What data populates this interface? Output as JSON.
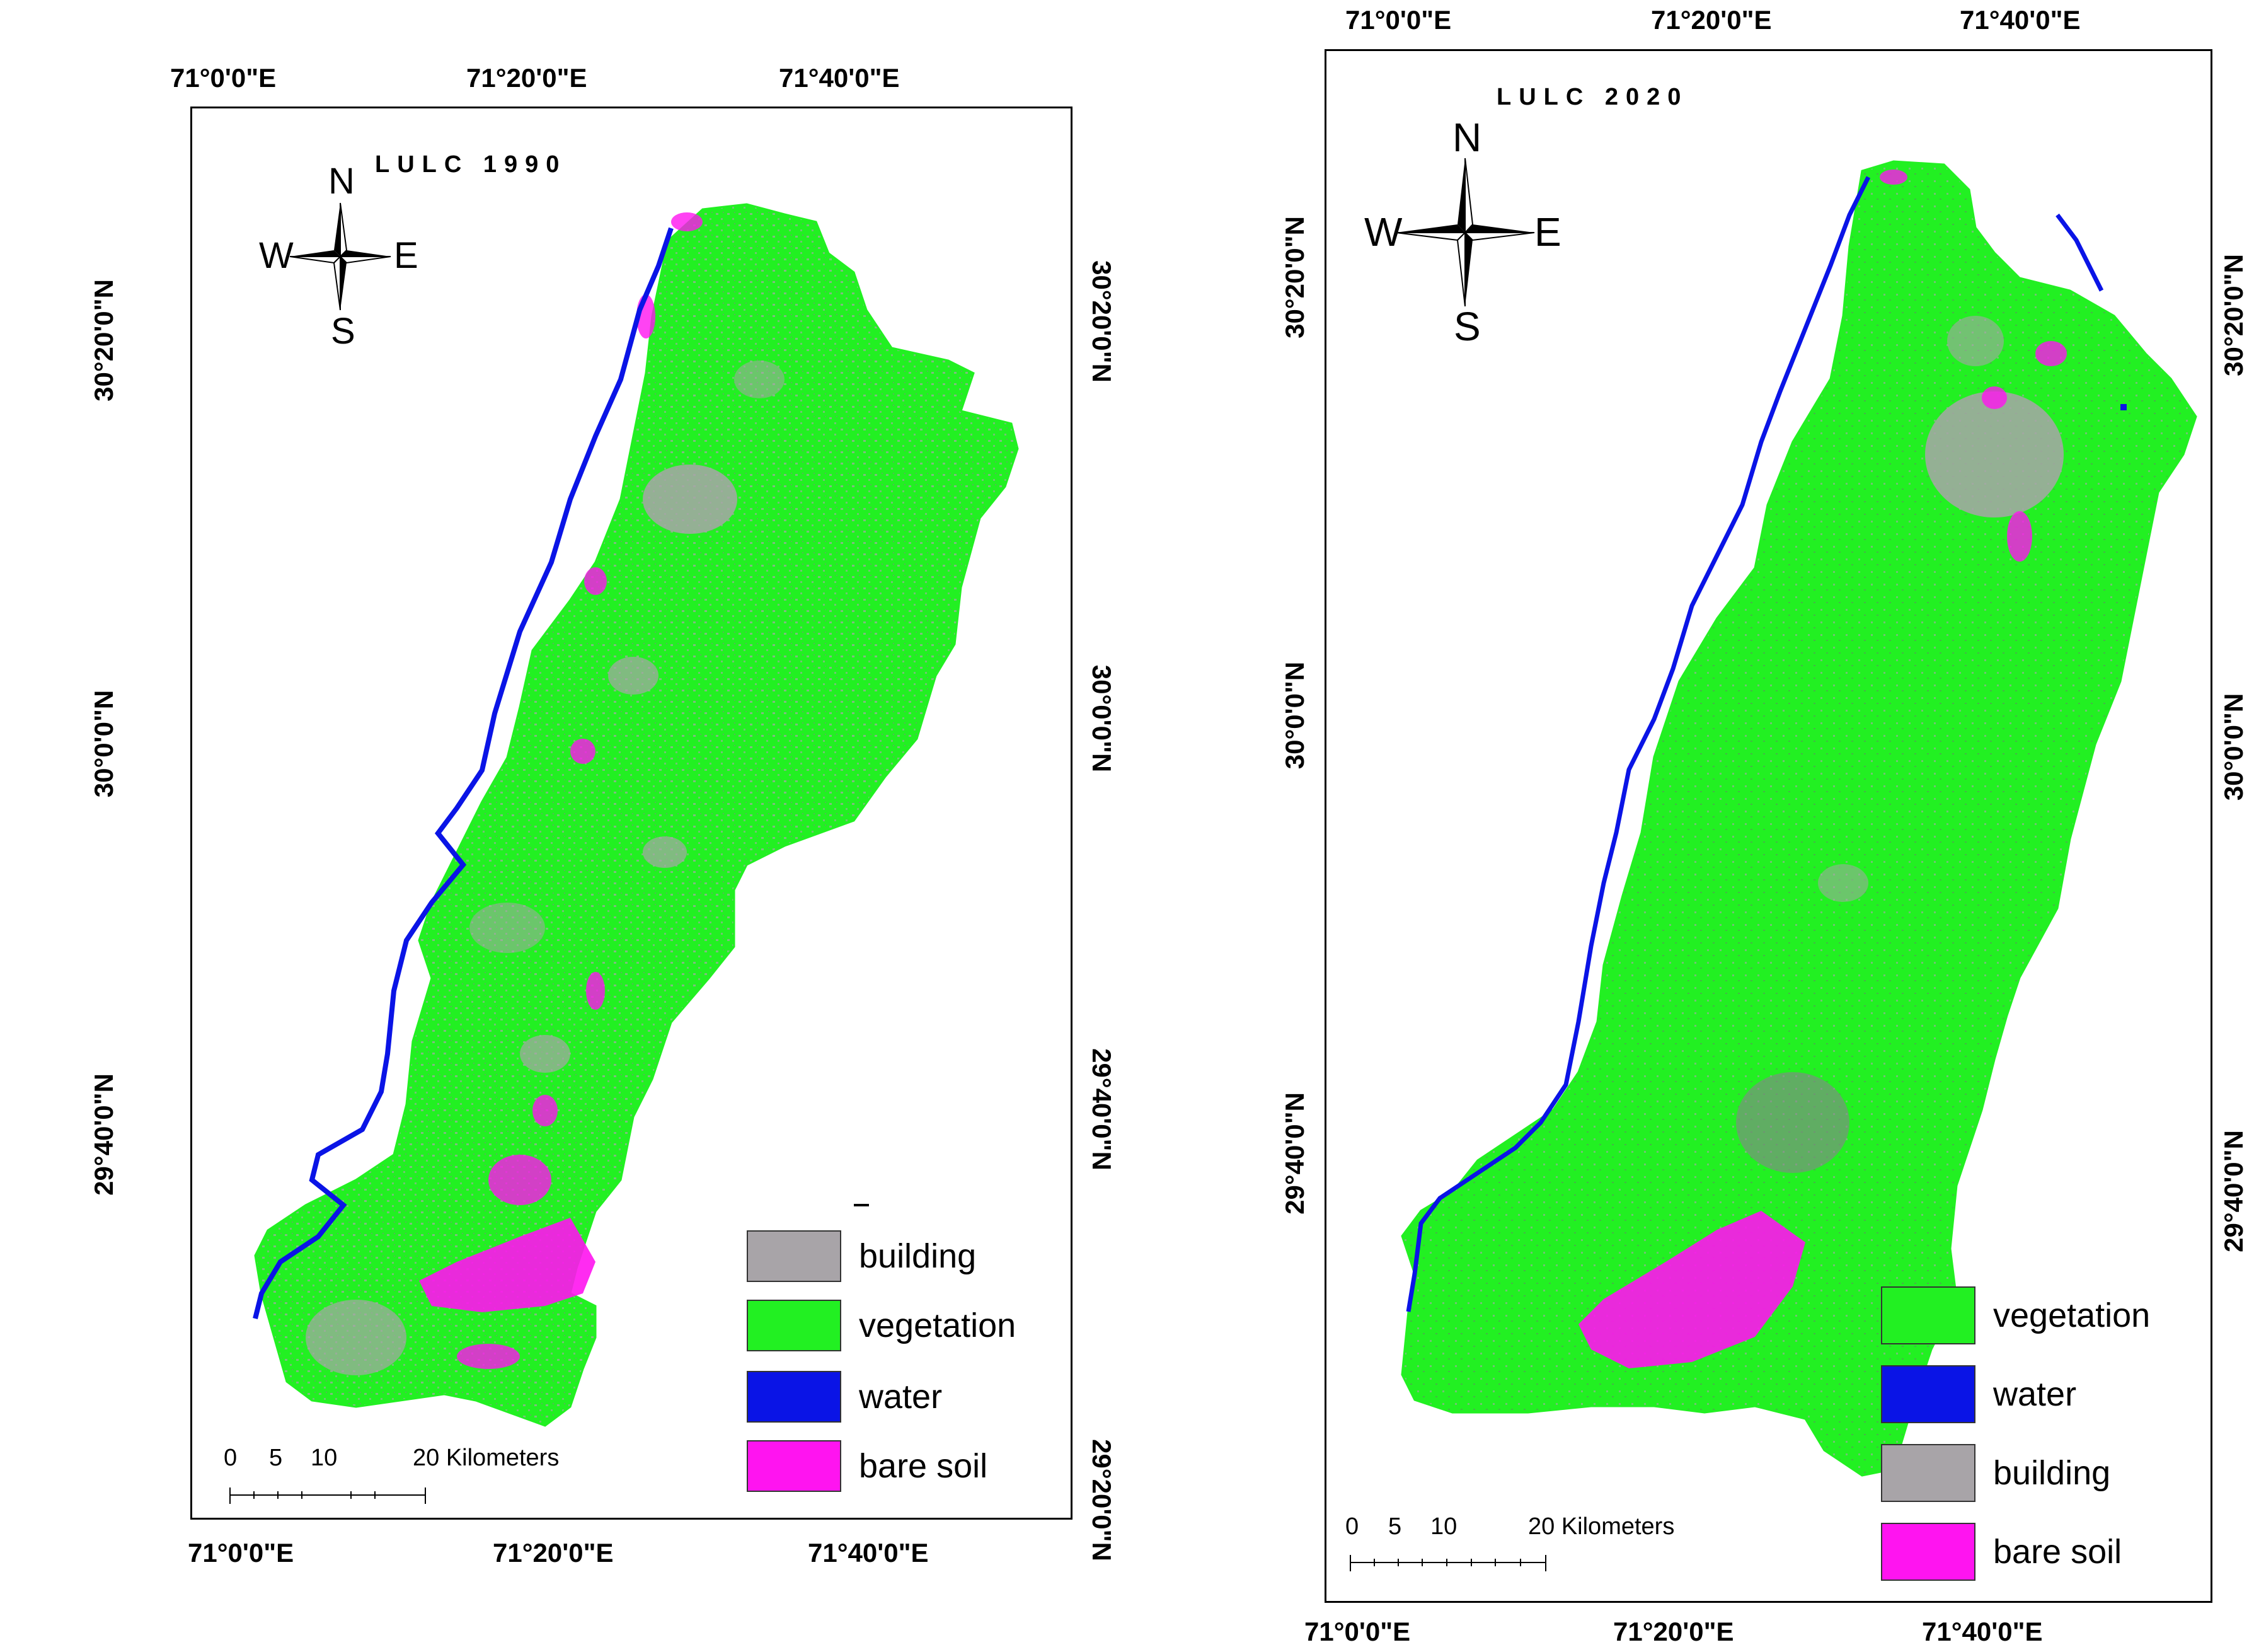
{
  "map1990": {
    "title": "LULC 1990",
    "top_ticks": [
      "71°0'0\"E",
      "71°20'0\"E",
      "71°40'0\"E"
    ],
    "bottom_ticks": [
      "71°0'0\"E",
      "71°20'0\"E",
      "71°40'0\"E"
    ],
    "left_ticks": [
      "30°20'0\"N",
      "30°0'0\"N",
      "29°40'0\"N"
    ],
    "right_ticks": [
      "30°20'0\"N",
      "30°0'0\"N",
      "29°40'0\"N",
      "29°20'0\"N"
    ],
    "compass": {
      "n": "N",
      "s": "S",
      "e": "E",
      "w": "W"
    },
    "scale": {
      "numbers": [
        "0",
        "5",
        "10"
      ],
      "label": "20 Kilometers"
    },
    "legend": [
      {
        "label": "building",
        "color": "#a8a4a8"
      },
      {
        "label": "vegetation",
        "color": "#22f022"
      },
      {
        "label": "water",
        "color": "#0a14e6"
      },
      {
        "label": "bare soil",
        "color": "#ff14f0"
      }
    ]
  },
  "map2020": {
    "title": "LULC 2020",
    "top_ticks": [
      "71°0'0\"E",
      "71°20'0\"E",
      "71°40'0\"E"
    ],
    "bottom_ticks": [
      "71°0'0\"E",
      "71°20'0\"E",
      "71°40'0\"E"
    ],
    "left_ticks": [
      "30°20'0\"N",
      "30°0'0\"N",
      "29°40'0\"N"
    ],
    "right_ticks": [
      "30°20'0\"N",
      "30°0'0\"N",
      "29°40'0\"N"
    ],
    "compass": {
      "n": "N",
      "s": "S",
      "e": "E",
      "w": "W"
    },
    "scale": {
      "numbers": [
        "0",
        "5",
        "10"
      ],
      "label": "20 Kilometers"
    },
    "legend": [
      {
        "label": "vegetation",
        "color": "#22f022"
      },
      {
        "label": "water",
        "color": "#0a14e6"
      },
      {
        "label": "building",
        "color": "#a8a4a8"
      },
      {
        "label": "bare soil",
        "color": "#ff14f0"
      }
    ]
  }
}
